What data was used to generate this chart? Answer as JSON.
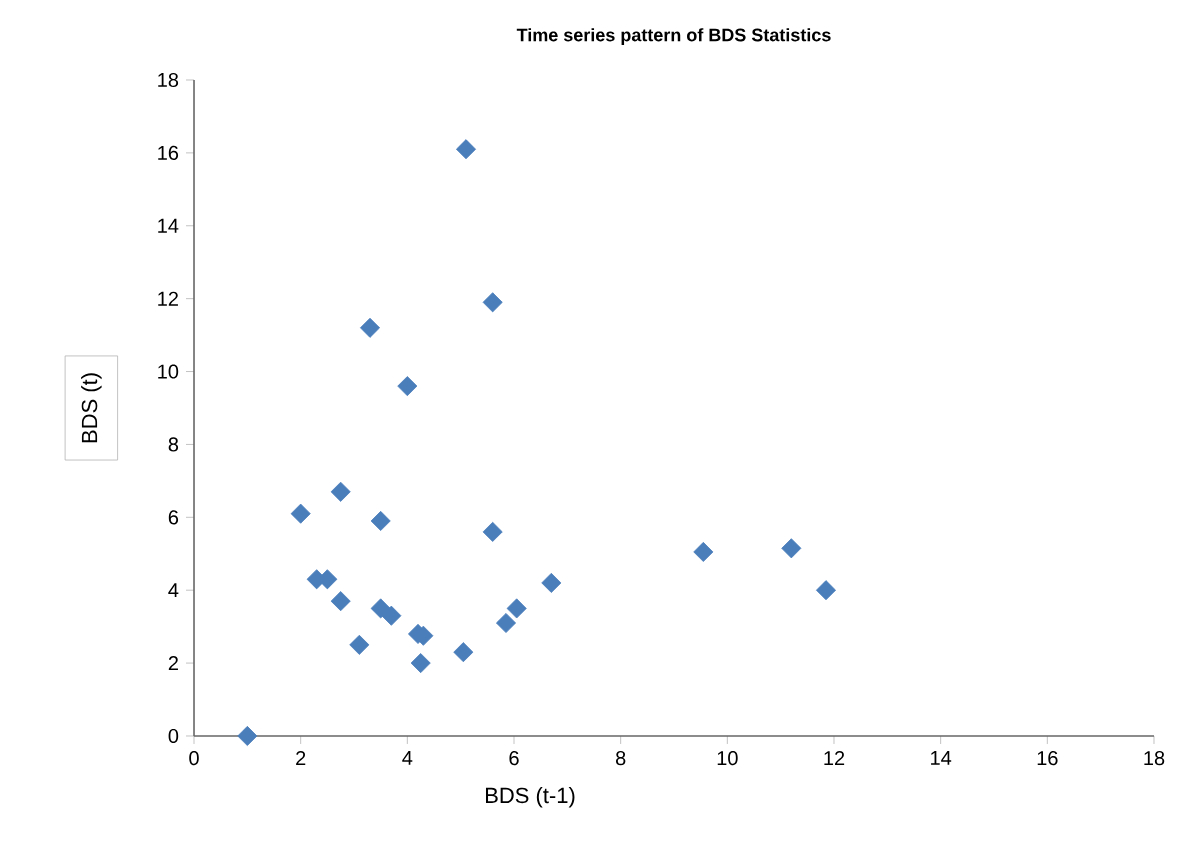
{
  "chart_data": {
    "type": "scatter",
    "title": "Time series pattern of BDS Statistics",
    "xlabel": "BDS (t-1)",
    "ylabel": "BDS (t)",
    "marker": "diamond",
    "xlim": [
      0,
      18
    ],
    "xticks": [
      0,
      2,
      4,
      6,
      8,
      10,
      12,
      14,
      16,
      18
    ],
    "ylim": [
      0,
      18
    ],
    "yticks": [
      0,
      2,
      4,
      6,
      8,
      10,
      12,
      14,
      16,
      18
    ],
    "series": [
      {
        "color": "#4a7ebb",
        "x": [
          1.0,
          2.0,
          2.3,
          2.5,
          2.75,
          2.75,
          3.1,
          3.3,
          3.5,
          3.5,
          3.7,
          4.0,
          4.2,
          4.3,
          4.25,
          5.05,
          5.1,
          5.6,
          5.6,
          5.85,
          6.05,
          6.7,
          9.55,
          11.2,
          11.85
        ],
        "values": [
          0,
          6.1,
          4.3,
          4.3,
          6.7,
          3.7,
          2.5,
          11.2,
          3.5,
          5.9,
          3.3,
          9.6,
          2.8,
          2.75,
          2.0,
          2.3,
          16.1,
          11.9,
          5.6,
          3.1,
          3.5,
          4.2,
          5.05,
          5.15,
          4.0
        ]
      }
    ]
  }
}
